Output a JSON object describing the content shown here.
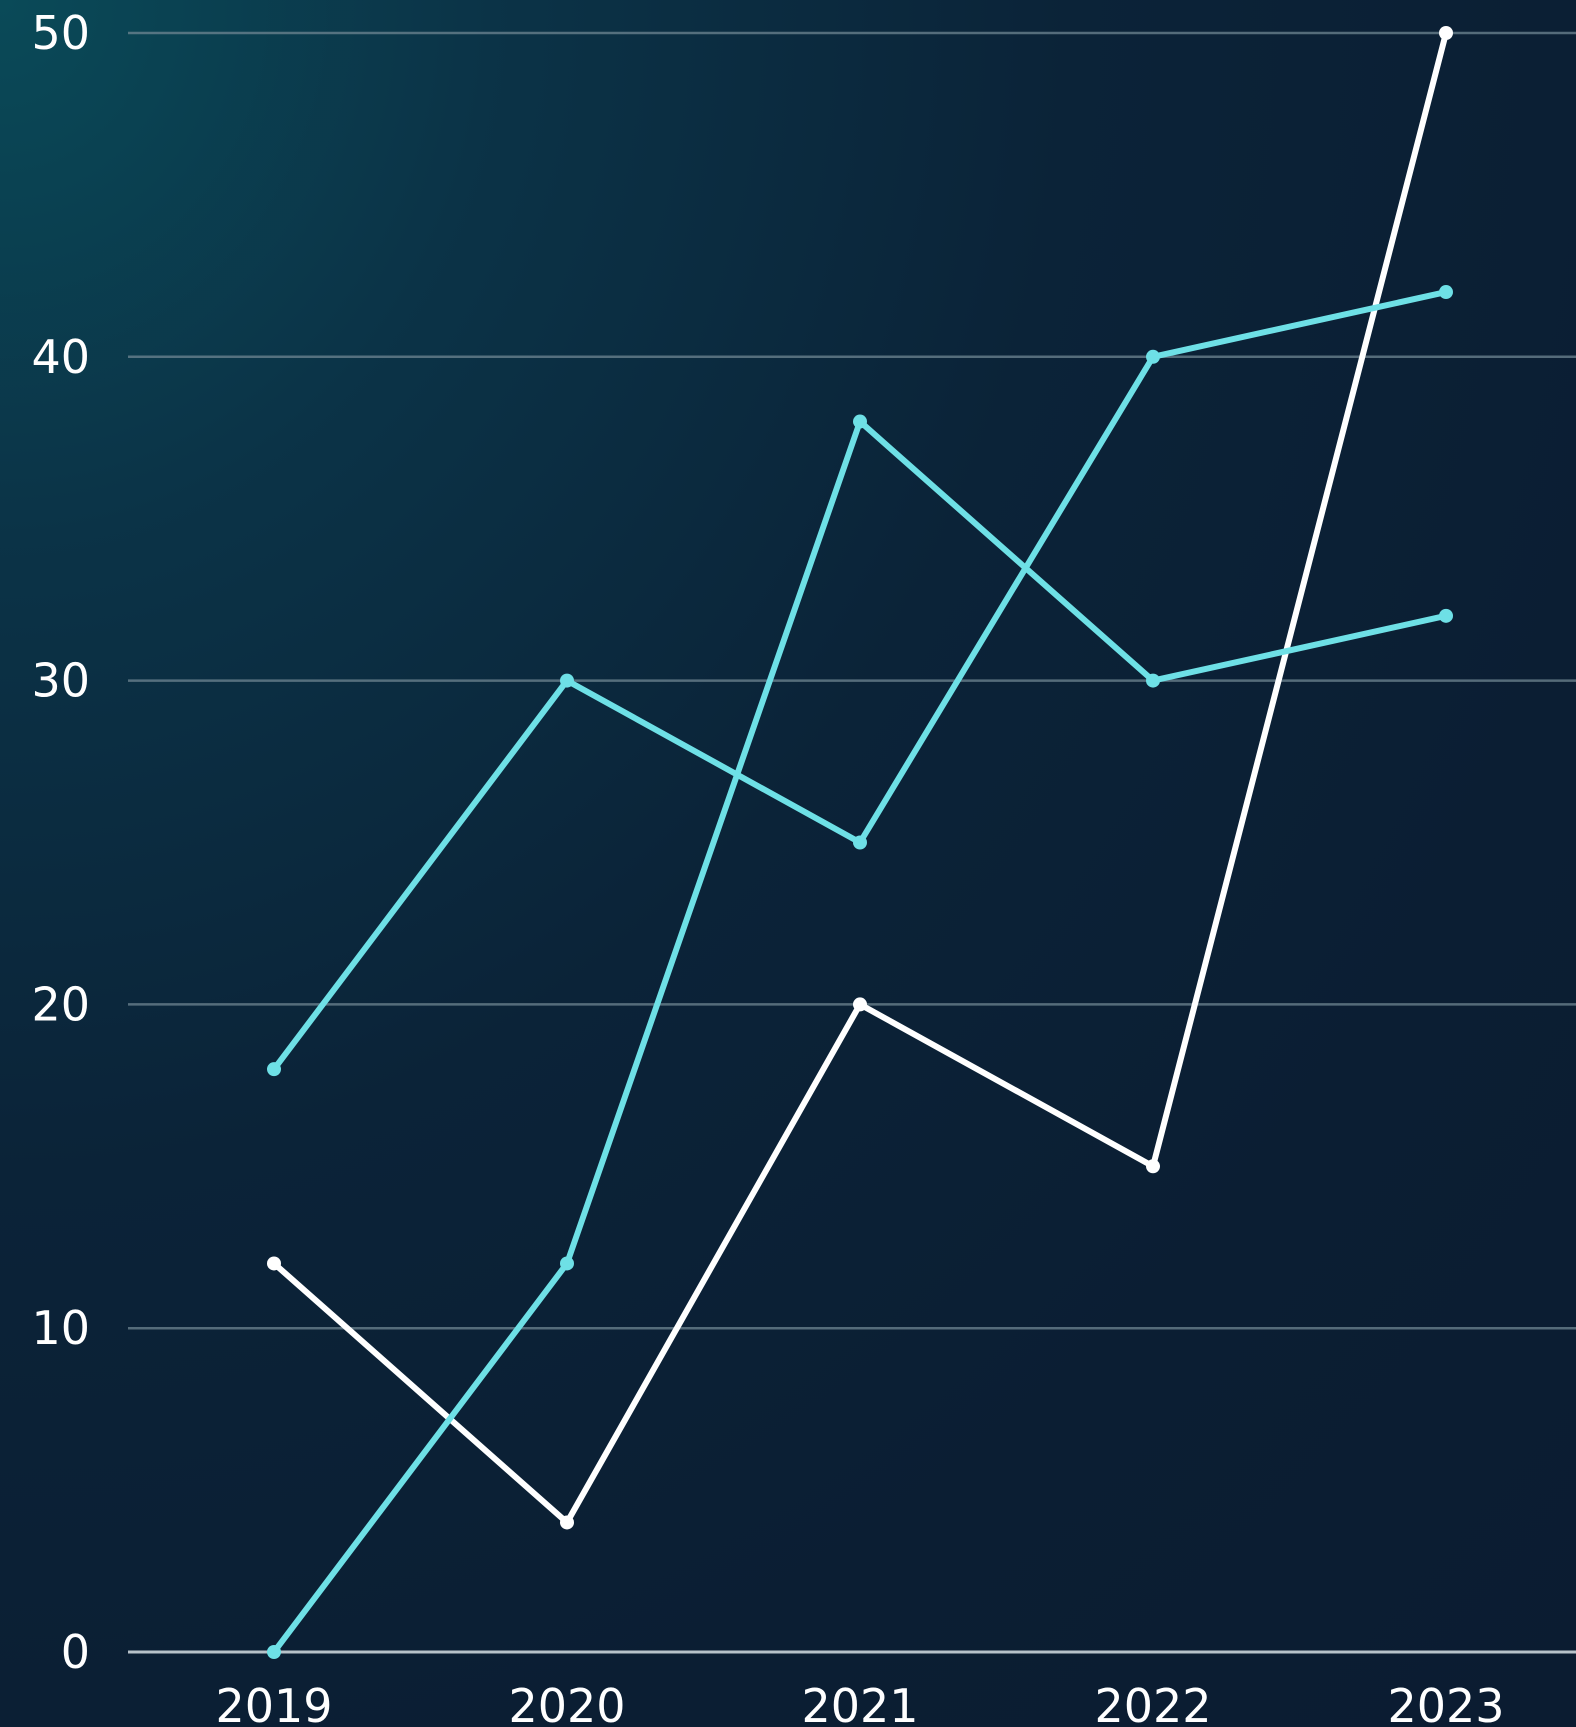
{
  "chart_data": {
    "type": "line",
    "categories": [
      "2019",
      "2020",
      "2021",
      "2022",
      "2023"
    ],
    "y_ticks": [
      "0",
      "10",
      "20",
      "30",
      "40",
      "50"
    ],
    "ylim": [
      0,
      50
    ],
    "grid": true,
    "legend": "none",
    "series": [
      {
        "color": "#ffffff",
        "values": [
          12,
          4,
          20,
          15,
          50
        ]
      },
      {
        "color": "#6ee0e6",
        "values": [
          18,
          30,
          25,
          40,
          42
        ]
      },
      {
        "color": "#6ee0e6",
        "values": [
          0,
          12,
          38,
          30,
          32
        ]
      }
    ],
    "colors": {
      "grid": "#6f8592",
      "axis": "#b7c2c9",
      "text": "#ffffff"
    }
  }
}
